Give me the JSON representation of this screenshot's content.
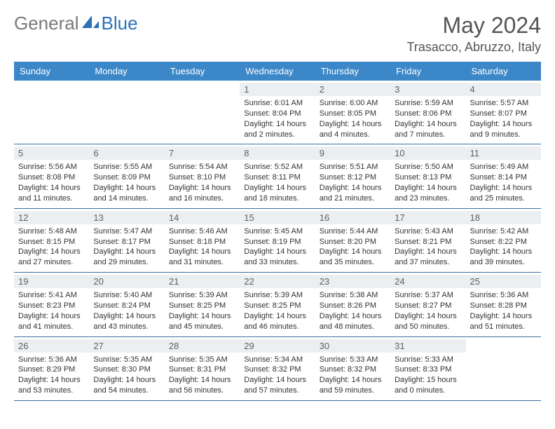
{
  "logo": {
    "text1": "General",
    "text2": "Blue"
  },
  "title": "May 2024",
  "location": "Trasacco, Abruzzo, Italy",
  "colors": {
    "header_bg": "#3b87c8",
    "header_text": "#ffffff",
    "daynum_bg": "#eceff1",
    "daynum_text": "#606060",
    "cell_border": "#3b6fa0",
    "title_text": "#555555",
    "body_text": "#333333",
    "logo_gray": "#7a7a7a",
    "logo_blue": "#2a71b8"
  },
  "day_headers": [
    "Sunday",
    "Monday",
    "Tuesday",
    "Wednesday",
    "Thursday",
    "Friday",
    "Saturday"
  ],
  "weeks": [
    [
      {
        "empty": true
      },
      {
        "empty": true
      },
      {
        "empty": true
      },
      {
        "day": "1",
        "sunrise": "Sunrise: 6:01 AM",
        "sunset": "Sunset: 8:04 PM",
        "daylight": "Daylight: 14 hours and 2 minutes."
      },
      {
        "day": "2",
        "sunrise": "Sunrise: 6:00 AM",
        "sunset": "Sunset: 8:05 PM",
        "daylight": "Daylight: 14 hours and 4 minutes."
      },
      {
        "day": "3",
        "sunrise": "Sunrise: 5:59 AM",
        "sunset": "Sunset: 8:06 PM",
        "daylight": "Daylight: 14 hours and 7 minutes."
      },
      {
        "day": "4",
        "sunrise": "Sunrise: 5:57 AM",
        "sunset": "Sunset: 8:07 PM",
        "daylight": "Daylight: 14 hours and 9 minutes."
      }
    ],
    [
      {
        "day": "5",
        "sunrise": "Sunrise: 5:56 AM",
        "sunset": "Sunset: 8:08 PM",
        "daylight": "Daylight: 14 hours and 11 minutes."
      },
      {
        "day": "6",
        "sunrise": "Sunrise: 5:55 AM",
        "sunset": "Sunset: 8:09 PM",
        "daylight": "Daylight: 14 hours and 14 minutes."
      },
      {
        "day": "7",
        "sunrise": "Sunrise: 5:54 AM",
        "sunset": "Sunset: 8:10 PM",
        "daylight": "Daylight: 14 hours and 16 minutes."
      },
      {
        "day": "8",
        "sunrise": "Sunrise: 5:52 AM",
        "sunset": "Sunset: 8:11 PM",
        "daylight": "Daylight: 14 hours and 18 minutes."
      },
      {
        "day": "9",
        "sunrise": "Sunrise: 5:51 AM",
        "sunset": "Sunset: 8:12 PM",
        "daylight": "Daylight: 14 hours and 21 minutes."
      },
      {
        "day": "10",
        "sunrise": "Sunrise: 5:50 AM",
        "sunset": "Sunset: 8:13 PM",
        "daylight": "Daylight: 14 hours and 23 minutes."
      },
      {
        "day": "11",
        "sunrise": "Sunrise: 5:49 AM",
        "sunset": "Sunset: 8:14 PM",
        "daylight": "Daylight: 14 hours and 25 minutes."
      }
    ],
    [
      {
        "day": "12",
        "sunrise": "Sunrise: 5:48 AM",
        "sunset": "Sunset: 8:15 PM",
        "daylight": "Daylight: 14 hours and 27 minutes."
      },
      {
        "day": "13",
        "sunrise": "Sunrise: 5:47 AM",
        "sunset": "Sunset: 8:17 PM",
        "daylight": "Daylight: 14 hours and 29 minutes."
      },
      {
        "day": "14",
        "sunrise": "Sunrise: 5:46 AM",
        "sunset": "Sunset: 8:18 PM",
        "daylight": "Daylight: 14 hours and 31 minutes."
      },
      {
        "day": "15",
        "sunrise": "Sunrise: 5:45 AM",
        "sunset": "Sunset: 8:19 PM",
        "daylight": "Daylight: 14 hours and 33 minutes."
      },
      {
        "day": "16",
        "sunrise": "Sunrise: 5:44 AM",
        "sunset": "Sunset: 8:20 PM",
        "daylight": "Daylight: 14 hours and 35 minutes."
      },
      {
        "day": "17",
        "sunrise": "Sunrise: 5:43 AM",
        "sunset": "Sunset: 8:21 PM",
        "daylight": "Daylight: 14 hours and 37 minutes."
      },
      {
        "day": "18",
        "sunrise": "Sunrise: 5:42 AM",
        "sunset": "Sunset: 8:22 PM",
        "daylight": "Daylight: 14 hours and 39 minutes."
      }
    ],
    [
      {
        "day": "19",
        "sunrise": "Sunrise: 5:41 AM",
        "sunset": "Sunset: 8:23 PM",
        "daylight": "Daylight: 14 hours and 41 minutes."
      },
      {
        "day": "20",
        "sunrise": "Sunrise: 5:40 AM",
        "sunset": "Sunset: 8:24 PM",
        "daylight": "Daylight: 14 hours and 43 minutes."
      },
      {
        "day": "21",
        "sunrise": "Sunrise: 5:39 AM",
        "sunset": "Sunset: 8:25 PM",
        "daylight": "Daylight: 14 hours and 45 minutes."
      },
      {
        "day": "22",
        "sunrise": "Sunrise: 5:39 AM",
        "sunset": "Sunset: 8:25 PM",
        "daylight": "Daylight: 14 hours and 46 minutes."
      },
      {
        "day": "23",
        "sunrise": "Sunrise: 5:38 AM",
        "sunset": "Sunset: 8:26 PM",
        "daylight": "Daylight: 14 hours and 48 minutes."
      },
      {
        "day": "24",
        "sunrise": "Sunrise: 5:37 AM",
        "sunset": "Sunset: 8:27 PM",
        "daylight": "Daylight: 14 hours and 50 minutes."
      },
      {
        "day": "25",
        "sunrise": "Sunrise: 5:36 AM",
        "sunset": "Sunset: 8:28 PM",
        "daylight": "Daylight: 14 hours and 51 minutes."
      }
    ],
    [
      {
        "day": "26",
        "sunrise": "Sunrise: 5:36 AM",
        "sunset": "Sunset: 8:29 PM",
        "daylight": "Daylight: 14 hours and 53 minutes."
      },
      {
        "day": "27",
        "sunrise": "Sunrise: 5:35 AM",
        "sunset": "Sunset: 8:30 PM",
        "daylight": "Daylight: 14 hours and 54 minutes."
      },
      {
        "day": "28",
        "sunrise": "Sunrise: 5:35 AM",
        "sunset": "Sunset: 8:31 PM",
        "daylight": "Daylight: 14 hours and 56 minutes."
      },
      {
        "day": "29",
        "sunrise": "Sunrise: 5:34 AM",
        "sunset": "Sunset: 8:32 PM",
        "daylight": "Daylight: 14 hours and 57 minutes."
      },
      {
        "day": "30",
        "sunrise": "Sunrise: 5:33 AM",
        "sunset": "Sunset: 8:32 PM",
        "daylight": "Daylight: 14 hours and 59 minutes."
      },
      {
        "day": "31",
        "sunrise": "Sunrise: 5:33 AM",
        "sunset": "Sunset: 8:33 PM",
        "daylight": "Daylight: 15 hours and 0 minutes."
      },
      {
        "empty": true
      }
    ]
  ]
}
